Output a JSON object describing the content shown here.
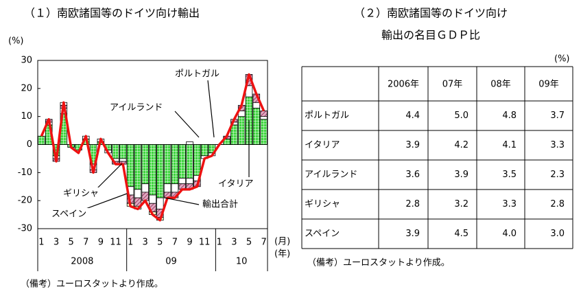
{
  "chart_data": {
    "type": "stacked-bar-line",
    "title": "（１）南欧諸国等のドイツ向け輸出",
    "y_unit": "(%)",
    "x_unit_month": "(月)",
    "x_unit_year": "(年)",
    "categories": [
      "1",
      null,
      "3",
      null,
      "5",
      null,
      "7",
      null,
      "9",
      null,
      "11",
      null,
      "1",
      null,
      "3",
      null,
      "5",
      null,
      "7",
      null,
      "9",
      null,
      "11",
      null,
      "1",
      null,
      "3",
      null,
      "5",
      null,
      "7"
    ],
    "year_labels": [
      "2008",
      "09",
      "10"
    ],
    "ylim": [
      -30,
      30
    ],
    "yticks": [
      -30,
      -20,
      -10,
      0,
      10,
      20,
      30
    ],
    "series": [
      {
        "name": "イタリア",
        "color": "#3fd43f",
        "pattern": "grid",
        "values": [
          3,
          7,
          -4,
          11,
          -1,
          -2,
          2,
          -7,
          1,
          -2,
          -5,
          -5,
          -15,
          -16,
          -14,
          -18,
          -19,
          -14,
          -14,
          -12,
          -12,
          -11,
          -4,
          -3,
          0,
          2,
          7,
          10,
          17,
          13,
          9
        ]
      },
      {
        "name": "スペイン",
        "color": "#ffffff",
        "values": [
          0,
          1,
          -1,
          2,
          0,
          0,
          0,
          -2,
          0,
          -1,
          -1,
          -1,
          -3,
          -3,
          -3,
          -3,
          -4,
          -3,
          -3,
          -2,
          -2,
          -2,
          -1,
          -1,
          0,
          0,
          1,
          2,
          4,
          2,
          1
        ]
      },
      {
        "name": "ギリシャ",
        "color": "#e0a8c0",
        "pattern": "hatch",
        "values": [
          0,
          1,
          -1,
          1,
          0,
          0,
          0,
          -1,
          0,
          0,
          -1,
          -1,
          -3,
          -3,
          -3,
          -3,
          -3,
          -2,
          -2,
          -2,
          -2,
          -2,
          0,
          0,
          0,
          1,
          1,
          2,
          4,
          3,
          2
        ]
      },
      {
        "name": "アイルランド",
        "color": "#ffffff",
        "values": [
          0,
          0,
          0,
          1,
          0,
          0,
          1,
          0,
          1,
          0,
          0,
          0,
          0,
          0,
          0,
          0,
          0,
          0,
          0,
          0,
          1,
          0,
          0,
          0,
          0,
          0,
          0,
          0,
          0,
          0,
          0
        ]
      },
      {
        "name": "ポルトガル",
        "color": "#ffffcc",
        "values": [
          0,
          0,
          0,
          0,
          0,
          0,
          0,
          0,
          0,
          0,
          0,
          0,
          -1,
          -1,
          0,
          -1,
          -1,
          0,
          0,
          0,
          0,
          0,
          0,
          0,
          0,
          0,
          0,
          0,
          0,
          0,
          0
        ]
      }
    ],
    "total": {
      "name": "輸出合計",
      "color": "#ee1111",
      "values": [
        3,
        9,
        -6,
        15,
        -1,
        -3,
        3,
        -10,
        2,
        -3,
        -7,
        -7,
        -22,
        -23,
        -20,
        -25,
        -27,
        -19,
        -19,
        -16,
        -16,
        -15,
        -5,
        -4,
        0,
        3,
        9,
        14,
        25,
        18,
        12
      ]
    },
    "note": "（備考）ユーロスタットより作成。"
  },
  "table": {
    "title_lines": [
      "（２）南欧諸国等のドイツ向け",
      "輸出の名目ＧＤＰ比"
    ],
    "unit": "(%)",
    "header": [
      "2006年",
      "07年",
      "08年",
      "09年"
    ],
    "rows": [
      {
        "label": "ポルトガル",
        "values": [
          "4.4",
          "5.0",
          "4.8",
          "3.7"
        ]
      },
      {
        "label": "イタリア",
        "values": [
          "3.9",
          "4.2",
          "4.1",
          "3.3"
        ]
      },
      {
        "label": "アイルランド",
        "values": [
          "3.6",
          "3.9",
          "3.5",
          "2.3"
        ]
      },
      {
        "label": "ギリシャ",
        "values": [
          "2.8",
          "3.2",
          "3.3",
          "2.8"
        ]
      },
      {
        "label": "スペイン",
        "values": [
          "3.9",
          "4.5",
          "4.0",
          "3.0"
        ]
      }
    ],
    "note": "（備考）ユーロスタットより作成。"
  }
}
